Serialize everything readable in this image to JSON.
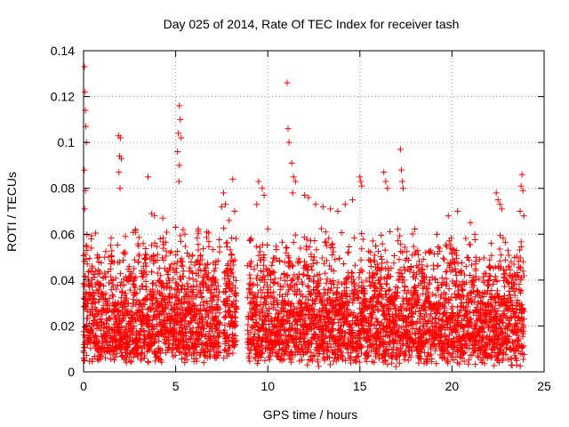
{
  "chart_data": {
    "type": "scatter",
    "title": "Day 025 of 2014, Rate Of TEC Index for receiver tash",
    "xlabel": "GPS time / hours",
    "ylabel": "ROTI / TECUs",
    "xlim": [
      0,
      25
    ],
    "ylim": [
      0,
      0.14
    ],
    "xticks": [
      0,
      5,
      10,
      15,
      20,
      25
    ],
    "xtick_labels": [
      "0",
      "5",
      "10",
      "15",
      "20",
      "25"
    ],
    "yticks": [
      0,
      0.02,
      0.04,
      0.06,
      0.08,
      0.1,
      0.12,
      0.14
    ],
    "ytick_labels": [
      "0",
      "0.02",
      "0.04",
      "0.06",
      "0.08",
      "0.1",
      "0.12",
      "0.14"
    ],
    "grid": true,
    "marker": "+",
    "color": "#ff0000",
    "series": [
      {
        "name": "ROTI",
        "points": [
          [
            0.05,
            0.133
          ],
          [
            0.08,
            0.122
          ],
          [
            0.1,
            0.114
          ],
          [
            0.12,
            0.107
          ],
          [
            0.15,
            0.1
          ],
          [
            0.04,
            0.088
          ],
          [
            0.06,
            0.071
          ],
          [
            0.1,
            0.079
          ],
          [
            0.14,
            0.055
          ],
          [
            0.2,
            0.047
          ],
          [
            1.9,
            0.103
          ],
          [
            2.0,
            0.102
          ],
          [
            1.95,
            0.094
          ],
          [
            2.05,
            0.093
          ],
          [
            1.92,
            0.087
          ],
          [
            1.98,
            0.08
          ],
          [
            3.5,
            0.085
          ],
          [
            3.7,
            0.069
          ],
          [
            3.85,
            0.068
          ],
          [
            4.3,
            0.067
          ],
          [
            5.2,
            0.116
          ],
          [
            5.25,
            0.11
          ],
          [
            5.15,
            0.104
          ],
          [
            5.3,
            0.102
          ],
          [
            5.1,
            0.096
          ],
          [
            5.2,
            0.09
          ],
          [
            5.18,
            0.083
          ],
          [
            5.0,
            0.063
          ],
          [
            5.4,
            0.062
          ],
          [
            5.5,
            0.06
          ],
          [
            7.6,
            0.078
          ],
          [
            7.7,
            0.073
          ],
          [
            8.1,
            0.084
          ],
          [
            7.5,
            0.072
          ],
          [
            7.9,
            0.066
          ],
          [
            8.2,
            0.07
          ],
          [
            9.5,
            0.083
          ],
          [
            9.7,
            0.08
          ],
          [
            9.8,
            0.077
          ],
          [
            9.4,
            0.073
          ],
          [
            11.05,
            0.126
          ],
          [
            11.1,
            0.106
          ],
          [
            11.15,
            0.1
          ],
          [
            11.3,
            0.091
          ],
          [
            11.4,
            0.085
          ],
          [
            11.5,
            0.083
          ],
          [
            11.35,
            0.078
          ],
          [
            12.0,
            0.077
          ],
          [
            12.2,
            0.076
          ],
          [
            12.6,
            0.073
          ],
          [
            13.0,
            0.072
          ],
          [
            13.4,
            0.071
          ],
          [
            13.8,
            0.07
          ],
          [
            14.2,
            0.073
          ],
          [
            14.6,
            0.075
          ],
          [
            15.0,
            0.085
          ],
          [
            15.05,
            0.083
          ],
          [
            15.1,
            0.081
          ],
          [
            16.3,
            0.087
          ],
          [
            16.4,
            0.083
          ],
          [
            16.5,
            0.08
          ],
          [
            17.2,
            0.097
          ],
          [
            17.25,
            0.088
          ],
          [
            17.3,
            0.083
          ],
          [
            17.35,
            0.08
          ],
          [
            19.8,
            0.068
          ],
          [
            20.3,
            0.07
          ],
          [
            21.0,
            0.065
          ],
          [
            22.4,
            0.078
          ],
          [
            22.5,
            0.075
          ],
          [
            22.6,
            0.073
          ],
          [
            22.7,
            0.071
          ],
          [
            23.8,
            0.086
          ],
          [
            23.75,
            0.081
          ],
          [
            23.85,
            0.079
          ],
          [
            23.7,
            0.07
          ],
          [
            23.9,
            0.068
          ]
        ]
      }
    ],
    "dense_bands": [
      {
        "x": [
          0.0,
          7.4
        ],
        "base": [
          0.003,
          0.012
        ],
        "top": [
          0.03,
          0.065
        ]
      },
      {
        "x": [
          7.6,
          8.3
        ],
        "base": [
          0.004,
          0.015
        ],
        "top": [
          0.03,
          0.065
        ]
      },
      {
        "x": [
          8.9,
          23.9
        ],
        "base": [
          0.002,
          0.012
        ],
        "top": [
          0.03,
          0.065
        ]
      }
    ]
  }
}
